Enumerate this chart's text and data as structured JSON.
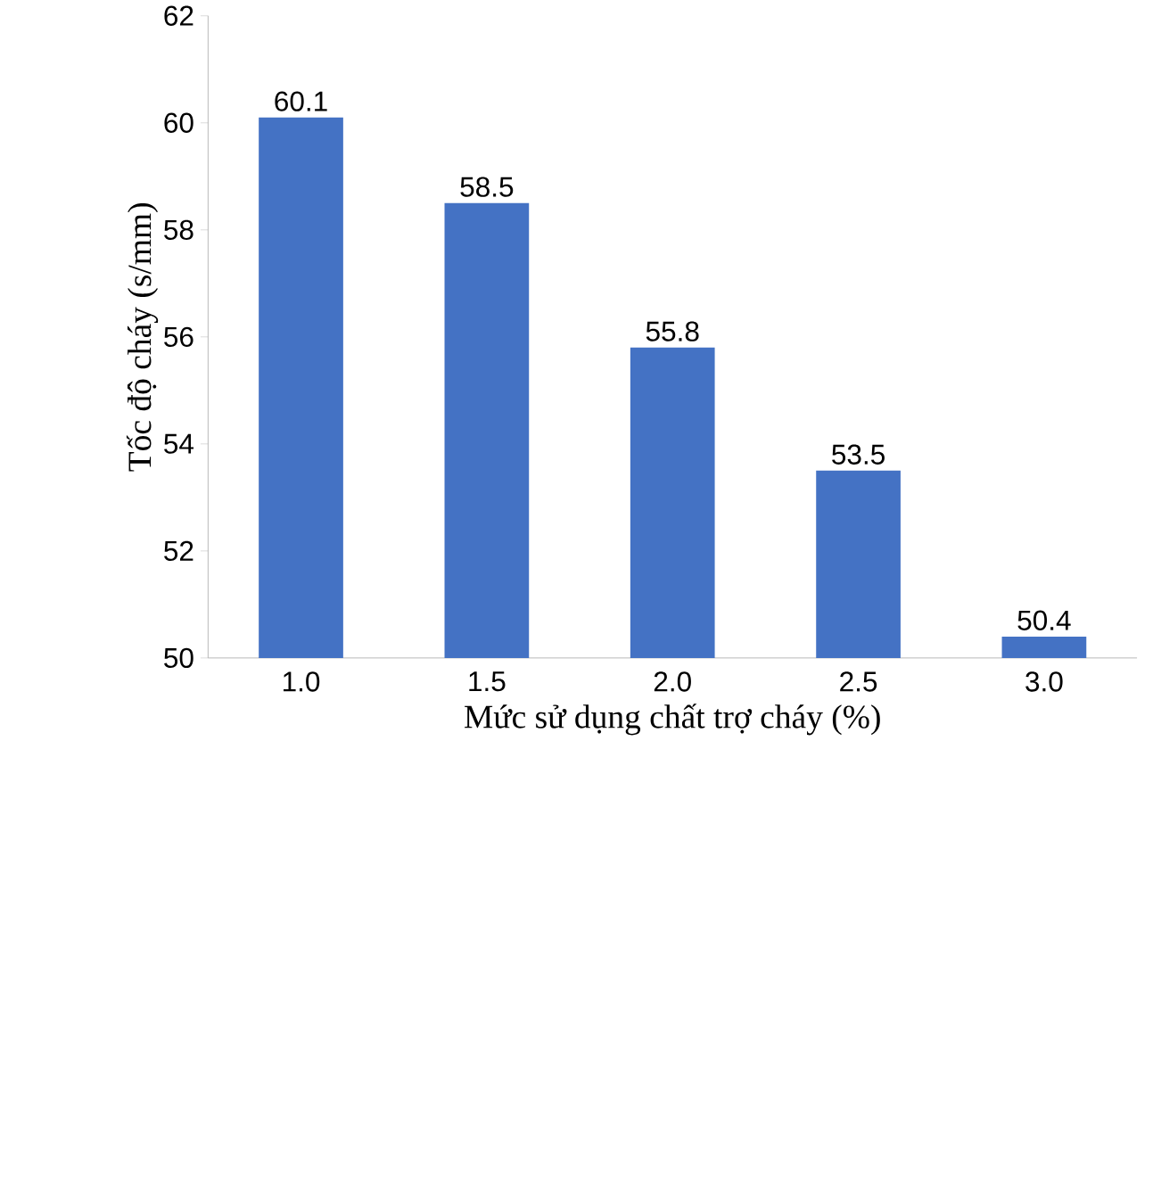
{
  "chart_data": {
    "type": "bar",
    "xlabel": "Mức sử dụng chất trợ cháy (%)",
    "ylabel": "Tốc độ cháy (s/mm)",
    "categories": [
      "1.0",
      "1.5",
      "2.0",
      "2.5",
      "3.0"
    ],
    "values": [
      60.1,
      58.5,
      55.8,
      53.5,
      50.4
    ],
    "color": "#4472c4",
    "ylim": [
      50,
      62
    ],
    "yticks": [
      50,
      52,
      54,
      56,
      58,
      60,
      62
    ],
    "data_labels": true
  }
}
